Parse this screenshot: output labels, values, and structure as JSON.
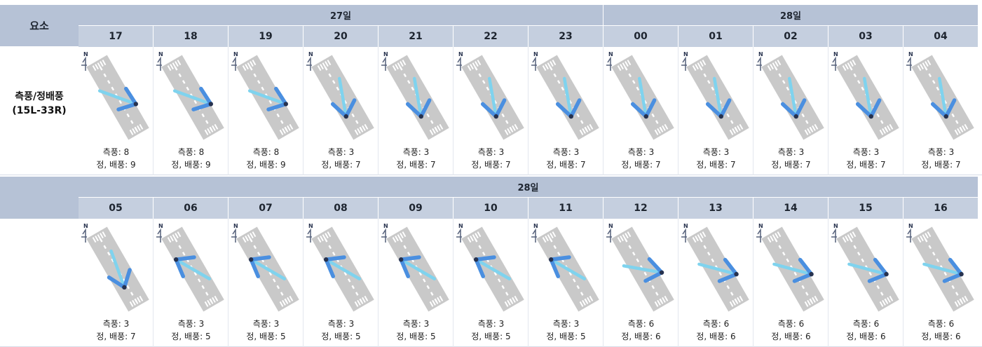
{
  "header": {
    "element_label": "요소"
  },
  "rows": [
    {
      "days": [
        {
          "label": "27일",
          "span": 7
        },
        {
          "label": "28일",
          "span": 5
        }
      ],
      "hours": [
        "17",
        "18",
        "19",
        "20",
        "21",
        "22",
        "23",
        "00",
        "01",
        "02",
        "03",
        "04"
      ],
      "row_label_line1": "측풍/정배풍",
      "row_label_line2": "(15L-33R)",
      "cells": [
        {
          "cross": "측풍: 8",
          "head": "정, 배풍: 9",
          "wind_dir_deg": 290
        },
        {
          "cross": "측풍: 8",
          "head": "정, 배풍: 9",
          "wind_dir_deg": 290
        },
        {
          "cross": "측풍: 8",
          "head": "정, 배풍: 9",
          "wind_dir_deg": 290
        },
        {
          "cross": "측풍: 3",
          "head": "정, 배풍: 7",
          "wind_dir_deg": 350
        },
        {
          "cross": "측풍: 3",
          "head": "정, 배풍: 7",
          "wind_dir_deg": 350
        },
        {
          "cross": "측풍: 3",
          "head": "정, 배풍: 7",
          "wind_dir_deg": 350
        },
        {
          "cross": "측풍: 3",
          "head": "정, 배풍: 7",
          "wind_dir_deg": 350
        },
        {
          "cross": "측풍: 3",
          "head": "정, 배풍: 7",
          "wind_dir_deg": 350
        },
        {
          "cross": "측풍: 3",
          "head": "정, 배풍: 7",
          "wind_dir_deg": 350
        },
        {
          "cross": "측풍: 3",
          "head": "정, 배풍: 7",
          "wind_dir_deg": 350
        },
        {
          "cross": "측풍: 3",
          "head": "정, 배풍: 7",
          "wind_dir_deg": 350
        },
        {
          "cross": "측풍: 3",
          "head": "정, 배풍: 7",
          "wind_dir_deg": 350
        }
      ]
    },
    {
      "days": [
        {
          "label": "28일",
          "span": 12
        }
      ],
      "hours": [
        "05",
        "06",
        "07",
        "08",
        "09",
        "10",
        "11",
        "12",
        "13",
        "14",
        "15",
        "16"
      ],
      "row_label_line1": "",
      "row_label_line2": "",
      "cells": [
        {
          "cross": "측풍: 3",
          "head": "정, 배풍: 7",
          "wind_dir_deg": 340
        },
        {
          "cross": "측풍: 3",
          "head": "정, 배풍: 5",
          "wind_dir_deg": 120
        },
        {
          "cross": "측풍: 3",
          "head": "정, 배풍: 5",
          "wind_dir_deg": 120
        },
        {
          "cross": "측풍: 3",
          "head": "정, 배풍: 5",
          "wind_dir_deg": 120
        },
        {
          "cross": "측풍: 3",
          "head": "정, 배풍: 5",
          "wind_dir_deg": 120
        },
        {
          "cross": "측풍: 3",
          "head": "정, 배풍: 5",
          "wind_dir_deg": 120
        },
        {
          "cross": "측풍: 3",
          "head": "정, 배풍: 5",
          "wind_dir_deg": 120
        },
        {
          "cross": "측풍: 6",
          "head": "정, 배풍: 6",
          "wind_dir_deg": 280
        },
        {
          "cross": "측풍: 6",
          "head": "정, 배풍: 6",
          "wind_dir_deg": 285
        },
        {
          "cross": "측풍: 6",
          "head": "정, 배풍: 6",
          "wind_dir_deg": 285
        },
        {
          "cross": "측풍: 6",
          "head": "정, 배풍: 6",
          "wind_dir_deg": 285
        },
        {
          "cross": "측풍: 6",
          "head": "정, 배풍: 6",
          "wind_dir_deg": 285
        }
      ]
    }
  ],
  "icons": {
    "north": "N",
    "north_arrow": "north-arrow-icon",
    "runway": "runway-icon",
    "wind_arrow": "wind-arrow-icon"
  },
  "colors": {
    "header_bg": "#b6c2d6",
    "runway": "#c9c9c9",
    "wind_line": "#7fd3ee",
    "arrow_head": "#4a8fe0",
    "arrow_tip": "#26324f"
  }
}
